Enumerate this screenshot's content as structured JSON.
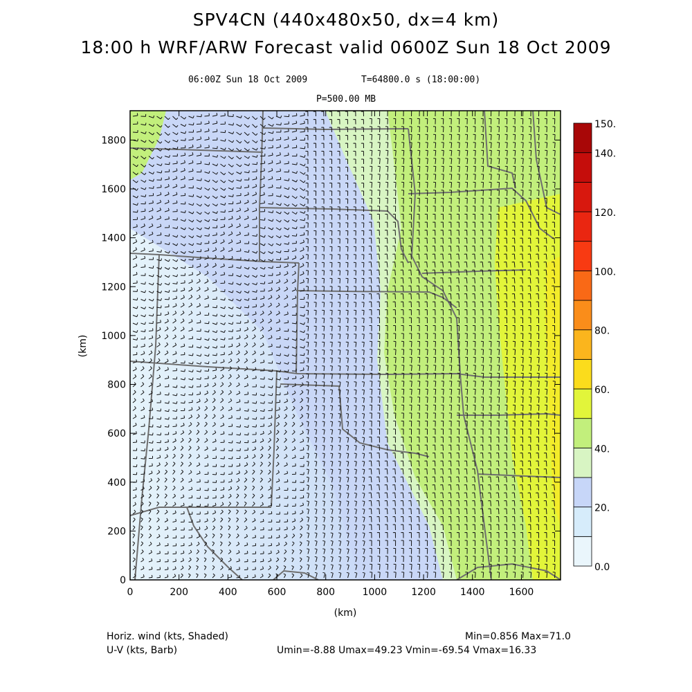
{
  "header": {
    "title_line1": "SPV4CN (440x480x50, dx=4 km)",
    "title_line2": "18:00 h WRF/ARW Forecast valid 0600Z Sun 18 Oct 2009",
    "valid_time": "06:00Z Sun 18 Oct 2009",
    "model_time": "T=64800.0 s (18:00:00)",
    "level": "P=500.00 MB"
  },
  "chart_data": {
    "type": "heatmap",
    "xlabel": "(km)",
    "ylabel": "(km)",
    "xlim": [
      0,
      1760
    ],
    "ylim": [
      0,
      1920
    ],
    "x_ticks": [
      0,
      200,
      400,
      600,
      800,
      1000,
      1200,
      1400,
      1600
    ],
    "y_ticks": [
      0,
      200,
      400,
      600,
      800,
      1000,
      1200,
      1400,
      1600,
      1800
    ],
    "colorbar": {
      "levels": [
        0,
        10,
        20,
        30,
        40,
        50,
        60,
        70,
        80,
        90,
        100,
        110,
        120,
        130,
        140,
        150
      ],
      "labels": [
        "0.0",
        "20.",
        "40.",
        "60.",
        "80.",
        "100.",
        "120.",
        "140.",
        "150."
      ],
      "label_values": [
        0,
        20,
        40,
        60,
        80,
        100,
        120,
        140,
        150
      ],
      "colors": [
        "#eaf6fc",
        "#d6ecfb",
        "#c7d6f8",
        "#d8f5c3",
        "#c2ef7c",
        "#e2f53a",
        "#fbdc1c",
        "#fbb51d",
        "#fa8d1a",
        "#f96916",
        "#f83a12",
        "#ea2611",
        "#d8180e",
        "#c50d0b",
        "#a80707"
      ]
    }
  },
  "footer": {
    "shaded_label": "Horiz. wind (kts, Shaded)",
    "barb_label": "U-V (kts, Barb)",
    "minmax": "Min=0.856 Max=71.0",
    "uv_stats": "Umin=-8.88 Umax=49.23 Vmin=-69.54 Vmax=16.33"
  }
}
